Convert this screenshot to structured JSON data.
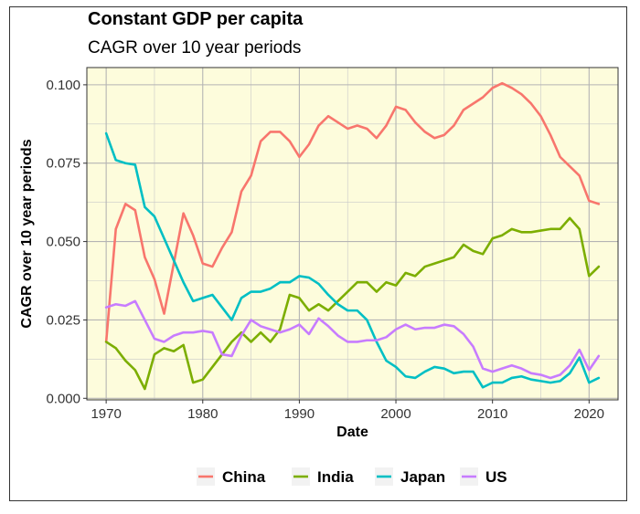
{
  "chart_data": {
    "type": "line",
    "title": "Constant GDP per capita",
    "subtitle": "CAGR over 10 year periods",
    "xlabel": "Date",
    "ylabel": "CAGR over 10 year periods",
    "xlim": [
      1968,
      2023
    ],
    "ylim": [
      -0.0005,
      0.1055
    ],
    "xticks": [
      1970,
      1980,
      1990,
      2000,
      2010,
      2020
    ],
    "yticks": [
      0.0,
      0.025,
      0.05,
      0.075,
      0.1
    ],
    "ytick_labels": [
      "0.000",
      "0.025",
      "0.050",
      "0.075",
      "0.100"
    ],
    "grid": true,
    "background": "#fdfcdc",
    "legend_position": "bottom",
    "x": [
      1970,
      1971,
      1972,
      1973,
      1974,
      1975,
      1976,
      1977,
      1978,
      1979,
      1980,
      1981,
      1982,
      1983,
      1984,
      1985,
      1986,
      1987,
      1988,
      1989,
      1990,
      1991,
      1992,
      1993,
      1994,
      1995,
      1996,
      1997,
      1998,
      1999,
      2000,
      2001,
      2002,
      2003,
      2004,
      2005,
      2006,
      2007,
      2008,
      2009,
      2010,
      2011,
      2012,
      2013,
      2014,
      2015,
      2016,
      2017,
      2018,
      2019,
      2020,
      2021
    ],
    "series": [
      {
        "name": "China",
        "color": "#f8766d",
        "values": [
          0.018,
          0.054,
          0.062,
          0.06,
          0.045,
          0.038,
          0.027,
          0.043,
          0.059,
          0.052,
          0.043,
          0.042,
          0.048,
          0.053,
          0.066,
          0.071,
          0.082,
          0.085,
          0.085,
          0.082,
          0.077,
          0.081,
          0.087,
          0.09,
          0.088,
          0.086,
          0.087,
          0.086,
          0.083,
          0.087,
          0.093,
          0.092,
          0.088,
          0.085,
          0.083,
          0.084,
          0.087,
          0.092,
          0.094,
          0.096,
          0.099,
          0.1005,
          0.099,
          0.097,
          0.094,
          0.09,
          0.084,
          0.077,
          0.074,
          0.071,
          0.063,
          0.062
        ]
      },
      {
        "name": "India",
        "color": "#7cae00",
        "values": [
          0.018,
          0.016,
          0.012,
          0.009,
          0.003,
          0.014,
          0.016,
          0.015,
          0.017,
          0.005,
          0.006,
          0.01,
          0.014,
          0.018,
          0.021,
          0.018,
          0.021,
          0.018,
          0.022,
          0.033,
          0.032,
          0.028,
          0.03,
          0.028,
          0.031,
          0.034,
          0.037,
          0.037,
          0.034,
          0.037,
          0.036,
          0.04,
          0.039,
          0.042,
          0.043,
          0.044,
          0.045,
          0.049,
          0.047,
          0.046,
          0.051,
          0.052,
          0.054,
          0.053,
          0.053,
          0.0535,
          0.054,
          0.054,
          0.0575,
          0.054,
          0.039,
          0.042
        ]
      },
      {
        "name": "Japan",
        "color": "#00bfc4",
        "values": [
          0.0845,
          0.076,
          0.075,
          0.0745,
          0.061,
          0.058,
          0.051,
          0.044,
          0.037,
          0.031,
          0.032,
          0.033,
          0.029,
          0.025,
          0.032,
          0.034,
          0.034,
          0.035,
          0.037,
          0.037,
          0.039,
          0.0385,
          0.0365,
          0.033,
          0.03,
          0.028,
          0.028,
          0.025,
          0.018,
          0.012,
          0.01,
          0.007,
          0.0065,
          0.0085,
          0.01,
          0.0095,
          0.008,
          0.0085,
          0.0085,
          0.0035,
          0.005,
          0.005,
          0.0065,
          0.007,
          0.006,
          0.0055,
          0.005,
          0.0055,
          0.008,
          0.013,
          0.005,
          0.0065
        ]
      },
      {
        "name": "US",
        "color": "#c77cff",
        "values": [
          0.029,
          0.03,
          0.0295,
          0.031,
          0.025,
          0.019,
          0.018,
          0.02,
          0.021,
          0.021,
          0.0215,
          0.021,
          0.014,
          0.0135,
          0.02,
          0.025,
          0.023,
          0.022,
          0.021,
          0.022,
          0.0235,
          0.0205,
          0.0255,
          0.023,
          0.02,
          0.018,
          0.018,
          0.0185,
          0.0185,
          0.0195,
          0.022,
          0.0235,
          0.022,
          0.0225,
          0.0225,
          0.0235,
          0.023,
          0.0205,
          0.0165,
          0.0095,
          0.0085,
          0.0095,
          0.0105,
          0.0095,
          0.008,
          0.0075,
          0.0065,
          0.0075,
          0.0105,
          0.0155,
          0.009,
          0.0135
        ]
      }
    ]
  }
}
